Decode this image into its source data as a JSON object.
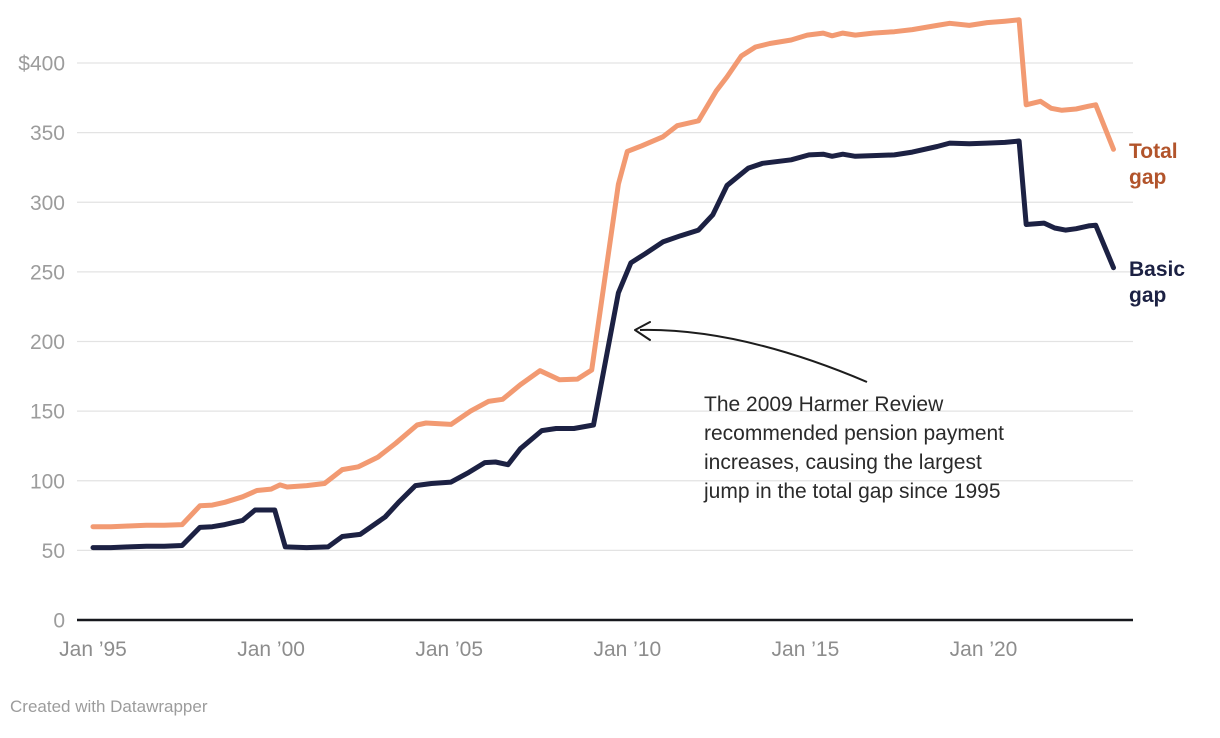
{
  "chart_data": {
    "type": "line",
    "title": "",
    "currency_prefix": "$",
    "xlim": [
      1994.95,
      2024.3
    ],
    "ylim": [
      0,
      430
    ],
    "grid": "horizontal",
    "legend_position": "right-edge-line-labels",
    "y_ticks": [
      {
        "value": 0,
        "label": "0"
      },
      {
        "value": 50,
        "label": "50"
      },
      {
        "value": 100,
        "label": "100"
      },
      {
        "value": 150,
        "label": "150"
      },
      {
        "value": 200,
        "label": "200"
      },
      {
        "value": 250,
        "label": "250"
      },
      {
        "value": 300,
        "label": "300"
      },
      {
        "value": 350,
        "label": "350"
      },
      {
        "value": 400,
        "label": "$400"
      }
    ],
    "x_ticks": [
      {
        "value": 1995,
        "label": "Jan ’95"
      },
      {
        "value": 2000,
        "label": "Jan ’00"
      },
      {
        "value": 2005,
        "label": "Jan ’05"
      },
      {
        "value": 2010,
        "label": "Jan ’10"
      },
      {
        "value": 2015,
        "label": "Jan ’15"
      },
      {
        "value": 2020,
        "label": "Jan ’20"
      }
    ],
    "series": [
      {
        "name": "Total gap",
        "color": "#f29a72",
        "label_color": "#b2542b",
        "points": [
          [
            1995.0,
            67
          ],
          [
            1995.5,
            67
          ],
          [
            1996.0,
            67.5
          ],
          [
            1996.5,
            68
          ],
          [
            1997.0,
            68
          ],
          [
            1997.5,
            68.5
          ],
          [
            1998.0,
            82
          ],
          [
            1998.35,
            82.5
          ],
          [
            1998.7,
            84.5
          ],
          [
            1999.2,
            88.5
          ],
          [
            1999.6,
            93
          ],
          [
            2000.0,
            94
          ],
          [
            2000.25,
            97
          ],
          [
            2000.45,
            95.5
          ],
          [
            2001.0,
            96.5
          ],
          [
            2001.5,
            98
          ],
          [
            2002.0,
            108
          ],
          [
            2002.45,
            110
          ],
          [
            2003.0,
            117
          ],
          [
            2003.5,
            127
          ],
          [
            2004.1,
            140
          ],
          [
            2004.35,
            141.5
          ],
          [
            2005.05,
            140.5
          ],
          [
            2005.6,
            150
          ],
          [
            2006.1,
            157
          ],
          [
            2006.5,
            158.5
          ],
          [
            2007.0,
            169
          ],
          [
            2007.55,
            179
          ],
          [
            2008.1,
            172.5
          ],
          [
            2008.6,
            173
          ],
          [
            2009.0,
            179.5
          ],
          [
            2009.75,
            313
          ],
          [
            2010.0,
            336.5
          ],
          [
            2010.4,
            340.5
          ],
          [
            2011.0,
            347
          ],
          [
            2011.4,
            355
          ],
          [
            2012.0,
            358.5
          ],
          [
            2012.5,
            380
          ],
          [
            2012.8,
            390
          ],
          [
            2013.2,
            405
          ],
          [
            2013.6,
            411.5
          ],
          [
            2014.0,
            414
          ],
          [
            2014.6,
            416.5
          ],
          [
            2015.05,
            420
          ],
          [
            2015.5,
            421.5
          ],
          [
            2015.75,
            419.5
          ],
          [
            2016.05,
            421.5
          ],
          [
            2016.4,
            420
          ],
          [
            2016.9,
            421.5
          ],
          [
            2017.5,
            422.5
          ],
          [
            2018.0,
            424
          ],
          [
            2018.7,
            427
          ],
          [
            2019.05,
            428.5
          ],
          [
            2019.6,
            427
          ],
          [
            2020.1,
            429
          ],
          [
            2020.6,
            430
          ],
          [
            2021.0,
            431
          ],
          [
            2021.2,
            370
          ],
          [
            2021.6,
            372.5
          ],
          [
            2021.9,
            367.5
          ],
          [
            2022.2,
            366
          ],
          [
            2022.6,
            367
          ],
          [
            2022.95,
            369
          ],
          [
            2023.15,
            370
          ],
          [
            2023.65,
            338
          ]
        ]
      },
      {
        "name": "Basic gap",
        "color": "#1c2143",
        "label_color": "#1c2143",
        "points": [
          [
            1995.0,
            52
          ],
          [
            1995.5,
            52
          ],
          [
            1996.0,
            52.5
          ],
          [
            1996.5,
            53
          ],
          [
            1997.0,
            53
          ],
          [
            1997.5,
            53.5
          ],
          [
            1998.0,
            66.5
          ],
          [
            1998.35,
            67
          ],
          [
            1998.7,
            68.5
          ],
          [
            1999.2,
            71.5
          ],
          [
            1999.55,
            79
          ],
          [
            2000.1,
            79
          ],
          [
            2000.4,
            52.5
          ],
          [
            2001.0,
            52
          ],
          [
            2001.6,
            52.5
          ],
          [
            2002.0,
            60
          ],
          [
            2002.5,
            61.5
          ],
          [
            2003.2,
            74
          ],
          [
            2003.6,
            85
          ],
          [
            2004.05,
            96.5
          ],
          [
            2004.5,
            98
          ],
          [
            2005.05,
            99
          ],
          [
            2005.55,
            106
          ],
          [
            2006.0,
            113
          ],
          [
            2006.3,
            113.5
          ],
          [
            2006.65,
            111.5
          ],
          [
            2007.0,
            123
          ],
          [
            2007.6,
            136
          ],
          [
            2008.0,
            137.5
          ],
          [
            2008.5,
            137.5
          ],
          [
            2009.05,
            140
          ],
          [
            2009.75,
            235
          ],
          [
            2010.1,
            256.5
          ],
          [
            2010.5,
            263
          ],
          [
            2011.0,
            271.5
          ],
          [
            2011.5,
            276
          ],
          [
            2012.0,
            280
          ],
          [
            2012.4,
            291
          ],
          [
            2012.8,
            312
          ],
          [
            2013.4,
            324.5
          ],
          [
            2013.8,
            328
          ],
          [
            2014.6,
            330.5
          ],
          [
            2015.1,
            334
          ],
          [
            2015.5,
            334.5
          ],
          [
            2015.75,
            333
          ],
          [
            2016.05,
            334.5
          ],
          [
            2016.4,
            333
          ],
          [
            2016.9,
            333.5
          ],
          [
            2017.5,
            334
          ],
          [
            2018.0,
            336
          ],
          [
            2018.7,
            340
          ],
          [
            2019.05,
            342.5
          ],
          [
            2019.6,
            342
          ],
          [
            2020.1,
            342.5
          ],
          [
            2020.6,
            343
          ],
          [
            2021.0,
            344
          ],
          [
            2021.2,
            284
          ],
          [
            2021.7,
            285
          ],
          [
            2022.0,
            281.5
          ],
          [
            2022.3,
            280
          ],
          [
            2022.6,
            281
          ],
          [
            2022.95,
            283
          ],
          [
            2023.15,
            283.5
          ],
          [
            2023.65,
            253
          ]
        ]
      }
    ],
    "annotation": {
      "text": "The 2009 Harmer Review\nrecommended pension payment\nincreases, causing the largest\njump in the total gap since 1995"
    }
  },
  "footer": {
    "credit": "Created with Datawrapper"
  },
  "colors": {
    "gridline": "#e3e3e3",
    "axis_line": "#17181d",
    "tick_text": "#9c9c9c",
    "annotation_text": "#2a2a2a"
  }
}
